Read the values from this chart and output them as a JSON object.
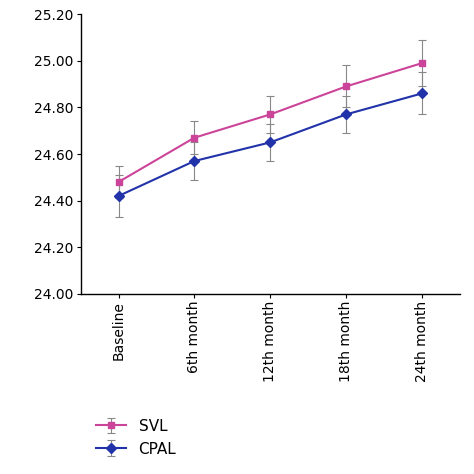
{
  "x_labels": [
    "Baseline",
    "6th month",
    "12th month",
    "18th month",
    "24th month"
  ],
  "x_positions": [
    0,
    1,
    2,
    3,
    4
  ],
  "svl_values": [
    24.48,
    24.67,
    24.77,
    24.89,
    24.99
  ],
  "svl_errors": [
    0.07,
    0.07,
    0.08,
    0.09,
    0.1
  ],
  "cpal_values": [
    24.42,
    24.57,
    24.65,
    24.77,
    24.86
  ],
  "cpal_errors": [
    0.09,
    0.08,
    0.08,
    0.08,
    0.09
  ],
  "svl_color": "#cc4499",
  "cpal_color": "#2233aa",
  "ylim": [
    24.0,
    25.2
  ],
  "yticks": [
    24.0,
    24.2,
    24.4,
    24.6,
    24.8,
    25.0,
    25.2
  ],
  "ytick_labels": [
    "24.00",
    "24.20",
    "24.40",
    "24.60",
    "24.80",
    "25.00",
    "25.20"
  ],
  "legend_labels": [
    "SVL",
    "CPAL"
  ],
  "background_color": "#ffffff",
  "marker_size": 5,
  "linewidth": 1.5,
  "tick_fontsize": 10,
  "legend_fontsize": 11
}
